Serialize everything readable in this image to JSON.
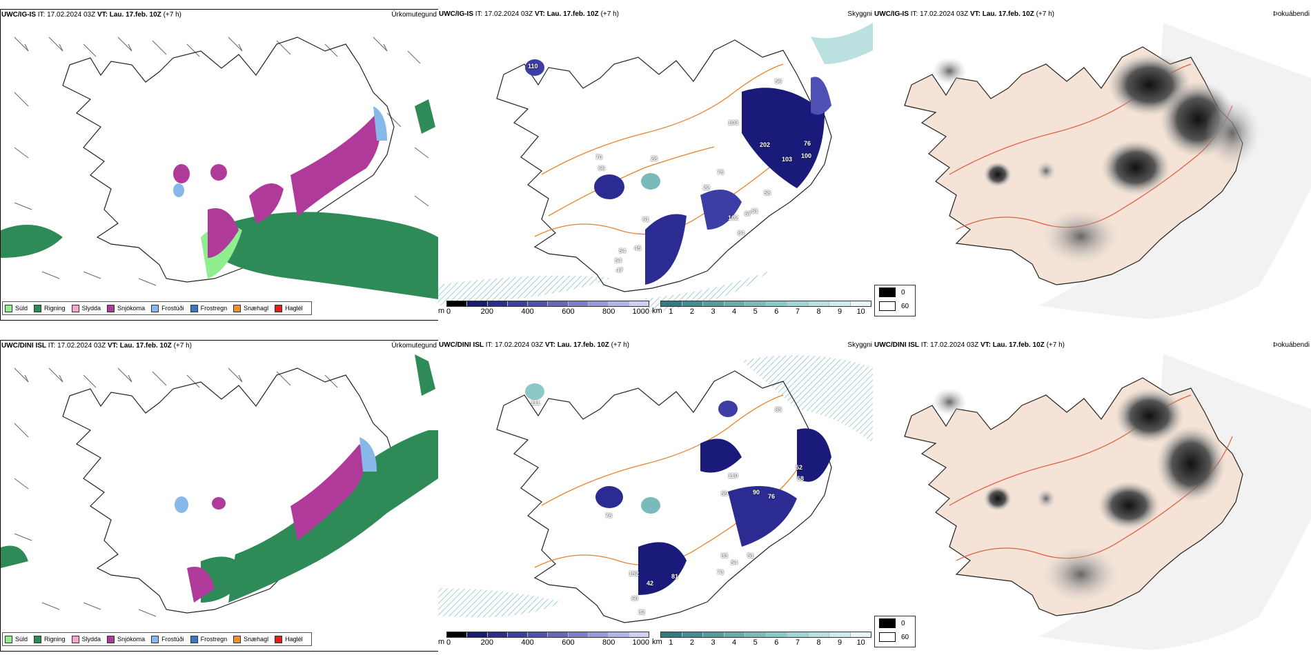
{
  "issue_text": "IT: 17.02.2024 03Z",
  "valid_label": "VT:",
  "valid_text": "Lau. 17.feb. 10Z",
  "lead_text": "(+7 h)",
  "rows": [
    {
      "model": "UWC/IG-IS"
    },
    {
      "model": "UWC/DINI ISL"
    }
  ],
  "panel_titles": {
    "precip_type": "Úrkomutegund",
    "visibility": "Skyggni",
    "fog": "Þokuábendi"
  },
  "precip_legend": [
    {
      "label": "Súld",
      "color": "#90ee90"
    },
    {
      "label": "Rigning",
      "color": "#2e8b57"
    },
    {
      "label": "Slydda",
      "color": "#f4a6d0"
    },
    {
      "label": "Snjókoma",
      "color": "#b03a9a"
    },
    {
      "label": "Frostúði",
      "color": "#87b8ea"
    },
    {
      "label": "Frostregn",
      "color": "#3a78c4"
    },
    {
      "label": "Snæhagl",
      "color": "#f0901e"
    },
    {
      "label": "Haglél",
      "color": "#e81c1c"
    }
  ],
  "visibility_scale_m": {
    "unit": "m",
    "ticks": [
      "0",
      "200",
      "400",
      "600",
      "800",
      "1000"
    ],
    "colors": [
      "#000000",
      "#1a1a7a",
      "#2b2b92",
      "#3d3da6",
      "#5050b4",
      "#6666c0",
      "#7e7ecc",
      "#9898d8",
      "#b4b4e4",
      "#d0d0f0"
    ]
  },
  "visibility_scale_km": {
    "unit": "km",
    "ticks": [
      "1",
      "2",
      "3",
      "4",
      "5",
      "6",
      "7",
      "8",
      "9",
      "10"
    ],
    "colors": [
      "#2d7f7f",
      "#3e8f8f",
      "#519e9e",
      "#65acac",
      "#79baba",
      "#8ec7c7",
      "#a4d4d4",
      "#bae0e0",
      "#d0ebeb",
      "#e6f5f5"
    ]
  },
  "fog_legend": [
    {
      "label": "0",
      "color": "#000000"
    },
    {
      "label": "60",
      "color": "#ffffff"
    }
  ],
  "visibility_labels": [
    [
      "110",
      "56",
      "103",
      "70",
      "66",
      "28",
      "202",
      "103",
      "75",
      "22",
      "102",
      "61",
      "45",
      "54",
      "47",
      "54",
      "84",
      "67",
      "61",
      "58",
      "100",
      "76"
    ],
    [
      "111",
      "85",
      "110",
      "78",
      "59",
      "90",
      "76",
      "52",
      "93",
      "54",
      "51",
      "73",
      "152",
      "42",
      "60",
      "32",
      "81",
      "58"
    ]
  ]
}
